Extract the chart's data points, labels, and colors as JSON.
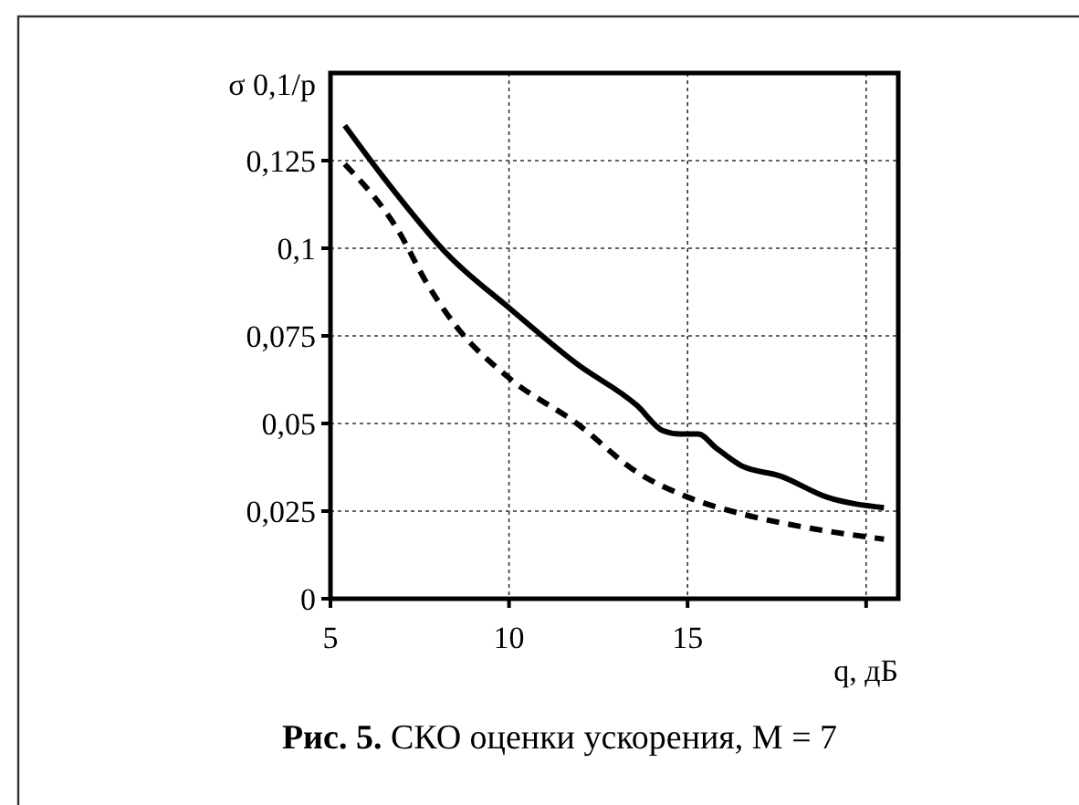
{
  "chart_data": {
    "type": "line",
    "title": "Рис. 5. СКО оценки ускорения, M = 7",
    "xlabel": "q, дБ",
    "ylabel": "σ 0,1/р",
    "xlim": [
      5,
      20.9
    ],
    "ylim": [
      0,
      0.15
    ],
    "xticks": [
      5,
      10,
      15,
      {
        "value": 20,
        "label": null
      }
    ],
    "yticks": [
      0,
      {
        "value": 0.025,
        "label": "0,025"
      },
      {
        "value": 0.05,
        "label": "0,05"
      },
      {
        "value": 0.075,
        "label": "0,075"
      },
      {
        "value": 0.1,
        "label": "0,1"
      },
      {
        "value": 0.125,
        "label": "0,125"
      }
    ],
    "grid": true,
    "marker": "none",
    "series": [
      {
        "color": "#000000",
        "line_style": "solid",
        "x": [
          5.4,
          6.5,
          8.3,
          10,
          11.9,
          13.6,
          14.3,
          14.8,
          15.3,
          15.8,
          16.5,
          17.6,
          18.9,
          20.5
        ],
        "values": [
          0.135,
          0.12,
          0.098,
          0.083,
          0.067,
          0.055,
          0.048,
          0.047,
          0.047,
          0.043,
          0.038,
          0.035,
          0.029,
          0.026
        ]
      },
      {
        "color": "#000000",
        "line_style": "dashed",
        "x": [
          5.4,
          6.9,
          7.7,
          8.5,
          10,
          11.9,
          13.6,
          15,
          16.6,
          18.5,
          20.5
        ],
        "values": [
          0.124,
          0.105,
          0.09,
          0.078,
          0.063,
          0.05,
          0.036,
          0.029,
          0.024,
          0.02,
          0.017
        ]
      }
    ]
  }
}
